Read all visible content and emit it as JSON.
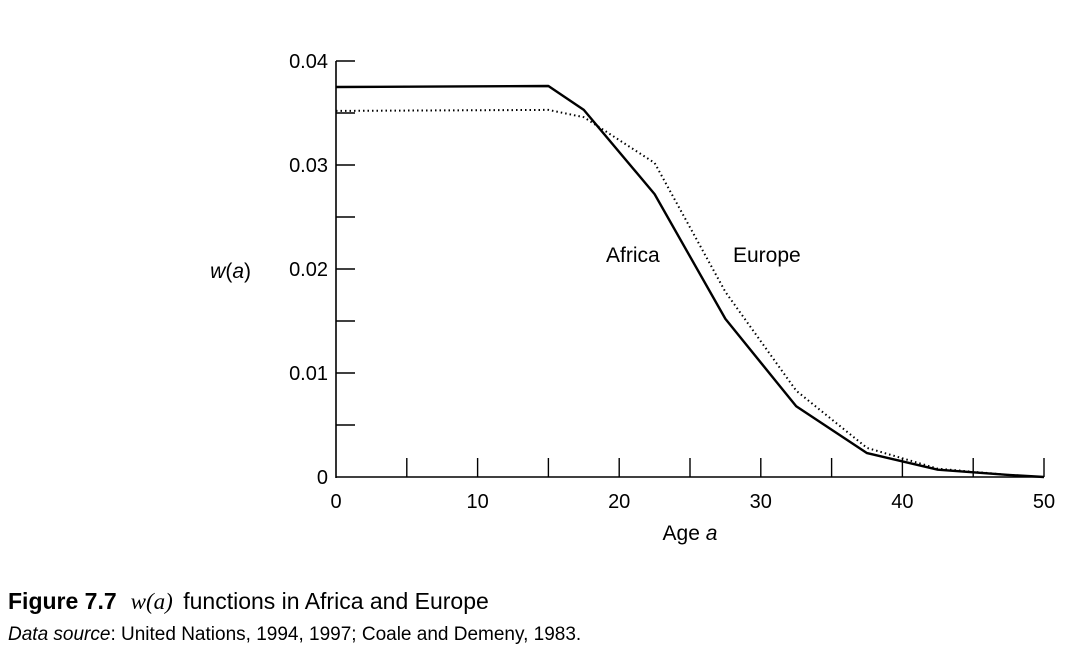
{
  "chart_data": {
    "type": "line",
    "xlabel": "Age a",
    "ylabel": "w(a)",
    "xlim": [
      0,
      50
    ],
    "ylim": [
      0,
      0.04
    ],
    "x_ticks": [
      "0",
      "10",
      "20",
      "30",
      "40",
      "50"
    ],
    "y_ticks": [
      "0",
      "0.01",
      "0.02",
      "0.03",
      "0.04"
    ],
    "series": [
      {
        "name": "Africa",
        "style": "solid",
        "color": "#000000",
        "x": [
          0,
          15,
          17.5,
          22.5,
          27.5,
          32.5,
          37.5,
          42.5,
          47.5,
          50
        ],
        "y": [
          0.0375,
          0.0376,
          0.0353,
          0.0272,
          0.0152,
          0.0068,
          0.0023,
          0.0007,
          0.0002,
          0.0
        ]
      },
      {
        "name": "Europe",
        "style": "dotted",
        "color": "#000000",
        "x": [
          0,
          15,
          17.5,
          22.5,
          27.5,
          32.5,
          37.5,
          42.5,
          47.5,
          50
        ],
        "y": [
          0.0352,
          0.0353,
          0.0346,
          0.0302,
          0.0178,
          0.0083,
          0.0028,
          0.0008,
          0.0002,
          0.0
        ]
      }
    ],
    "grid": false,
    "legend": "inline labels"
  },
  "caption": {
    "figure_number": "Figure 7.7",
    "math": "w(a)",
    "text": "functions in Africa and Europe"
  },
  "source": {
    "label": "Data source",
    "text": ": United Nations, 1994, 1997; Coale and Demeny, 1983."
  }
}
